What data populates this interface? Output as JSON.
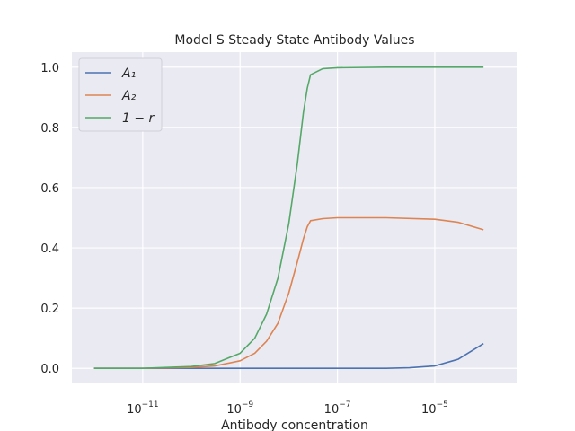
{
  "chart_data": {
    "type": "line",
    "title": "Model S Steady State Antibody Values",
    "xlabel": "Antibody concentration",
    "ylabel": "",
    "xscale": "log",
    "xlim": [
      3.5e-13,
      0.0005
    ],
    "ylim": [
      -0.05,
      1.05
    ],
    "grid": true,
    "legend_position": "top-left",
    "x_ticks": [
      {
        "value": 1e-11,
        "base": "10",
        "exp": "−11"
      },
      {
        "value": 1e-09,
        "base": "10",
        "exp": "−9"
      },
      {
        "value": 1e-07,
        "base": "10",
        "exp": "−7"
      },
      {
        "value": 1e-05,
        "base": "10",
        "exp": "−5"
      }
    ],
    "y_ticks": [
      0.0,
      0.2,
      0.4,
      0.6,
      0.8,
      1.0
    ],
    "y_tick_labels": [
      "0.0",
      "0.2",
      "0.4",
      "0.6",
      "0.8",
      "1.0"
    ],
    "series": [
      {
        "name": "A₁",
        "color": "#4c72b0",
        "x": [
          1e-12,
          1e-10,
          1e-08,
          1e-07,
          1e-06,
          3e-06,
          1e-05,
          3e-05,
          0.0001
        ],
        "y": [
          0.0,
          0.0,
          0.0,
          0.0,
          0.0,
          0.002,
          0.008,
          0.03,
          0.082
        ]
      },
      {
        "name": "A₂",
        "color": "#dd8452",
        "x": [
          1e-12,
          1e-11,
          1e-10,
          3e-10,
          1e-09,
          2e-09,
          3.5e-09,
          6e-09,
          1e-08,
          1.6e-08,
          2e-08,
          2.4e-08,
          2.8e-08,
          5e-08,
          1e-07,
          1e-06,
          1e-05,
          3e-05,
          0.0001
        ],
        "y": [
          0.0,
          0.0,
          0.003,
          0.008,
          0.025,
          0.05,
          0.09,
          0.15,
          0.25,
          0.37,
          0.43,
          0.47,
          0.49,
          0.497,
          0.5,
          0.5,
          0.495,
          0.485,
          0.46
        ]
      },
      {
        "name": "1 − r",
        "color": "#55a868",
        "x": [
          1e-12,
          1e-11,
          1e-10,
          3e-10,
          1e-09,
          2e-09,
          3.5e-09,
          6e-09,
          1e-08,
          1.5e-08,
          2e-08,
          2.4e-08,
          2.8e-08,
          5e-08,
          1e-07,
          1e-06,
          1e-05,
          0.0001
        ],
        "y": [
          0.0,
          0.0,
          0.006,
          0.016,
          0.05,
          0.1,
          0.18,
          0.3,
          0.48,
          0.68,
          0.85,
          0.93,
          0.975,
          0.995,
          0.998,
          1.0,
          1.0,
          1.0
        ]
      }
    ]
  }
}
